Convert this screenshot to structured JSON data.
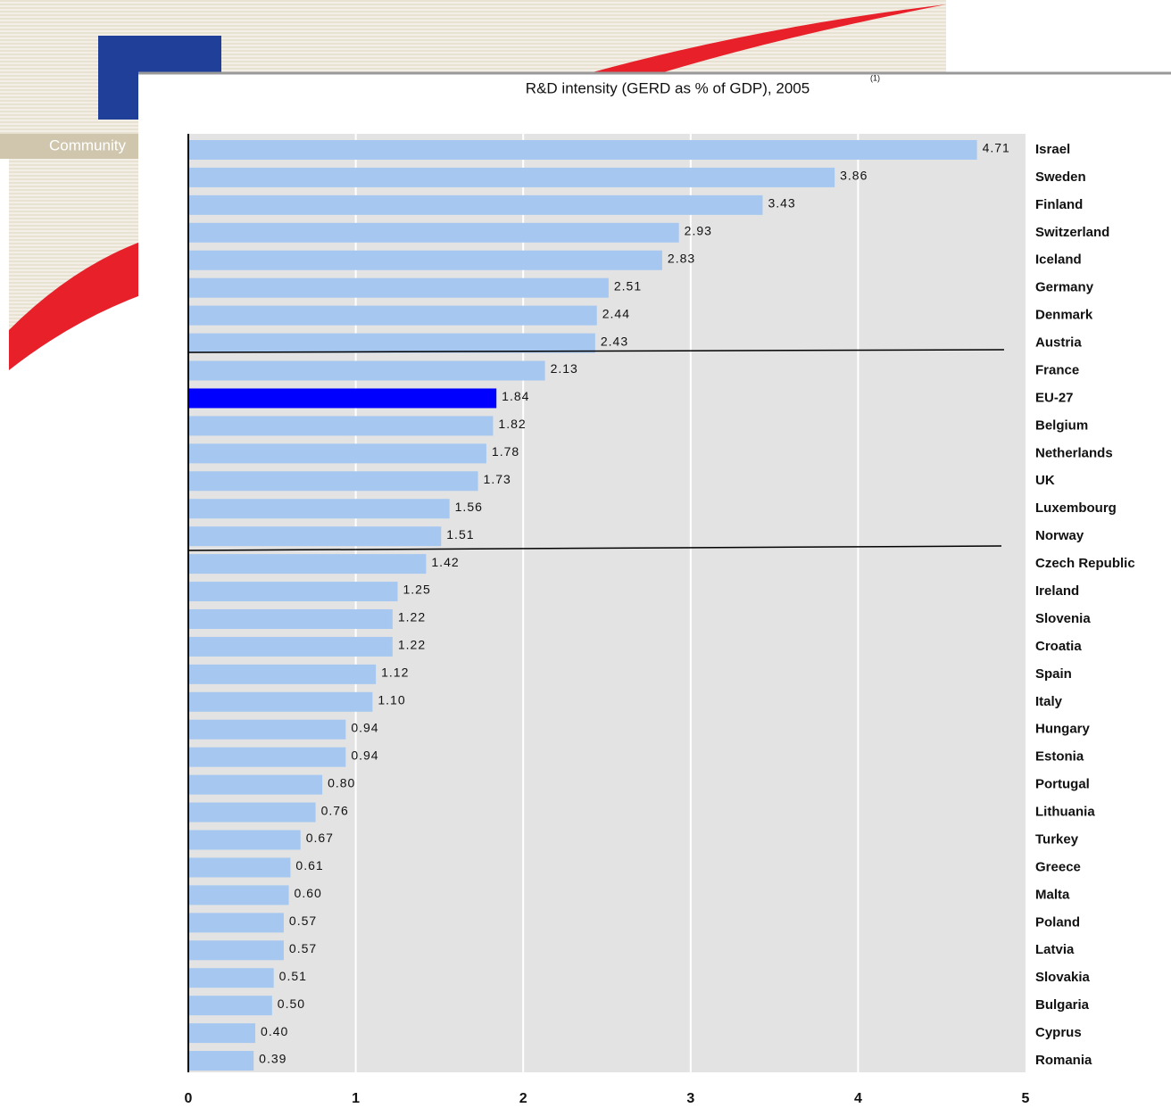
{
  "slide_footer": "Community",
  "chart_data": {
    "type": "bar",
    "orientation": "horizontal",
    "title": "R&D intensity (GERD as % of GDP), 2005",
    "title_note": "(1)",
    "categories": [
      "Israel",
      "Sweden",
      "Finland",
      "Switzerland",
      "Iceland",
      "Germany",
      "Denmark",
      "Austria",
      "France",
      "EU-27",
      "Belgium",
      "Netherlands",
      "UK",
      "Luxembourg",
      "Norway",
      "Czech Republic",
      "Ireland",
      "Slovenia",
      "Croatia",
      "Spain",
      "Italy",
      "Hungary",
      "Estonia",
      "Portugal",
      "Lithuania",
      "Turkey",
      "Greece",
      "Malta",
      "Poland",
      "Latvia",
      "Slovakia",
      "Bulgaria",
      "Cyprus",
      "Romania"
    ],
    "values": [
      4.71,
      3.86,
      3.43,
      2.93,
      2.83,
      2.51,
      2.44,
      2.43,
      2.13,
      1.84,
      1.82,
      1.78,
      1.73,
      1.56,
      1.51,
      1.42,
      1.25,
      1.22,
      1.22,
      1.12,
      1.1,
      0.94,
      0.94,
      0.8,
      0.76,
      0.67,
      0.61,
      0.6,
      0.57,
      0.57,
      0.51,
      0.5,
      0.4,
      0.39
    ],
    "value_labels": [
      "4.71",
      "3.86",
      "3.43",
      "2.93",
      "2.83",
      "2.51",
      "2.44",
      "2.43",
      "2.13",
      "1.84",
      "1.82",
      "1.78",
      "1.73",
      "1.56",
      "1.51",
      "1.42",
      "1.25",
      "1.22",
      "1.22",
      "1.12",
      "1.10",
      "0.94",
      "0.94",
      "0.80",
      "0.76",
      "0.67",
      "0.61",
      "0.60",
      "0.57",
      "0.57",
      "0.51",
      "0.50",
      "0.40",
      "0.39"
    ],
    "colors": [
      "#a6c8f0",
      "#a6c8f0",
      "#a6c8f0",
      "#a6c8f0",
      "#a6c8f0",
      "#a6c8f0",
      "#a6c8f0",
      "#a6c8f0",
      "#a6c8f0",
      "#0000ff",
      "#a6c8f0",
      "#a6c8f0",
      "#a6c8f0",
      "#a6c8f0",
      "#a6c8f0",
      "#a6c8f0",
      "#a6c8f0",
      "#a6c8f0",
      "#a6c8f0",
      "#a6c8f0",
      "#a6c8f0",
      "#a6c8f0",
      "#a6c8f0",
      "#a6c8f0",
      "#a6c8f0",
      "#a6c8f0",
      "#a6c8f0",
      "#a6c8f0",
      "#a6c8f0",
      "#a6c8f0",
      "#a6c8f0",
      "#a6c8f0",
      "#a6c8f0",
      "#a6c8f0"
    ],
    "xlim": [
      0,
      5
    ],
    "xticks": [
      0,
      1,
      2,
      3,
      4,
      5
    ],
    "grid": true
  }
}
